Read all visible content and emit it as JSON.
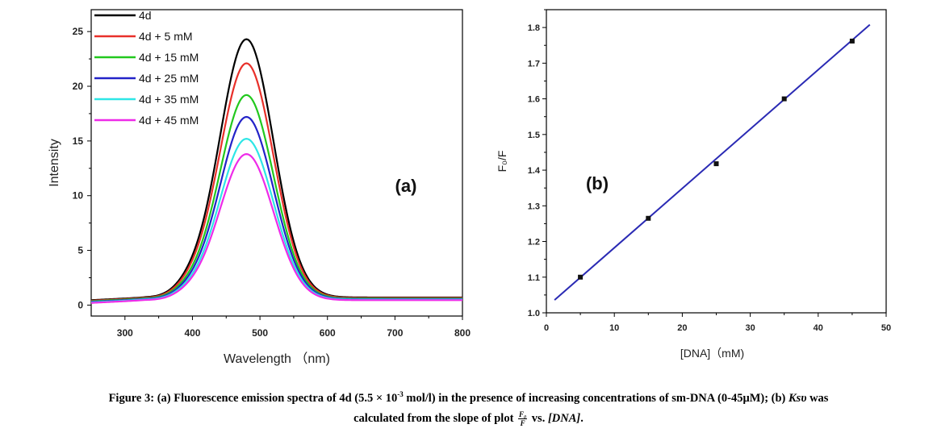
{
  "chart_data": [
    {
      "type": "line",
      "panel_label": "(a)",
      "xlabel": "Wavelength （nm)",
      "ylabel": "Intensity",
      "xlim": [
        250,
        800
      ],
      "ylim": [
        -1,
        27
      ],
      "xticks": [
        300,
        400,
        500,
        600,
        700,
        800
      ],
      "yticks": [
        0,
        5,
        10,
        15,
        20,
        25
      ],
      "legend_position": "top-left",
      "peak_x": 480,
      "series": [
        {
          "name": "4d",
          "color": "#000000",
          "peak": 24.3,
          "baseline": 0.7
        },
        {
          "name": "4d + 5   mM",
          "color": "#e8302a",
          "peak": 22.1,
          "baseline": 0.65
        },
        {
          "name": "4d + 15 mM",
          "color": "#22c81e",
          "peak": 19.2,
          "baseline": 0.6
        },
        {
          "name": "4d + 25 mM",
          "color": "#2323c8",
          "peak": 17.2,
          "baseline": 0.55
        },
        {
          "name": "4d + 35 mM",
          "color": "#2ee6e6",
          "peak": 15.2,
          "baseline": 0.5
        },
        {
          "name": "4d + 45 mM",
          "color": "#ee2be8",
          "peak": 13.8,
          "baseline": 0.45
        }
      ]
    },
    {
      "type": "scatter",
      "panel_label": "(b)",
      "xlabel": "[DNA]（mM)",
      "ylabel": "F₀/F",
      "xlim": [
        0,
        50
      ],
      "ylim": [
        1.0,
        1.85
      ],
      "xticks": [
        0,
        10,
        20,
        30,
        40,
        50
      ],
      "yticks": [
        1.0,
        1.1,
        1.2,
        1.3,
        1.4,
        1.5,
        1.6,
        1.7,
        1.8
      ],
      "x": [
        5,
        15,
        25,
        35,
        45
      ],
      "y": [
        1.1,
        1.265,
        1.418,
        1.6,
        1.762
      ],
      "fit_line": {
        "x": [
          1.2,
          47.6
        ],
        "y": [
          1.036,
          1.808
        ],
        "color": "#2a2ab4"
      }
    }
  ],
  "caption": {
    "line1_prefix": "Figure 3: (a) Fluorescence emission spectra of 4d (5.5 × 10",
    "line1_sup": "-3",
    "line1_suffix": " mol/l) in the presence of increasing concentrations of sm-DNA (0-45μM); (b) ",
    "ksv": "Ksυ",
    "line1_end": " was",
    "line2_prefix": "calculated from the slope of plot ",
    "frac_num": "F₀",
    "frac_den": "F",
    "line2_mid": " vs. ",
    "line2_dna": "[DNA]",
    "line2_end": "."
  }
}
